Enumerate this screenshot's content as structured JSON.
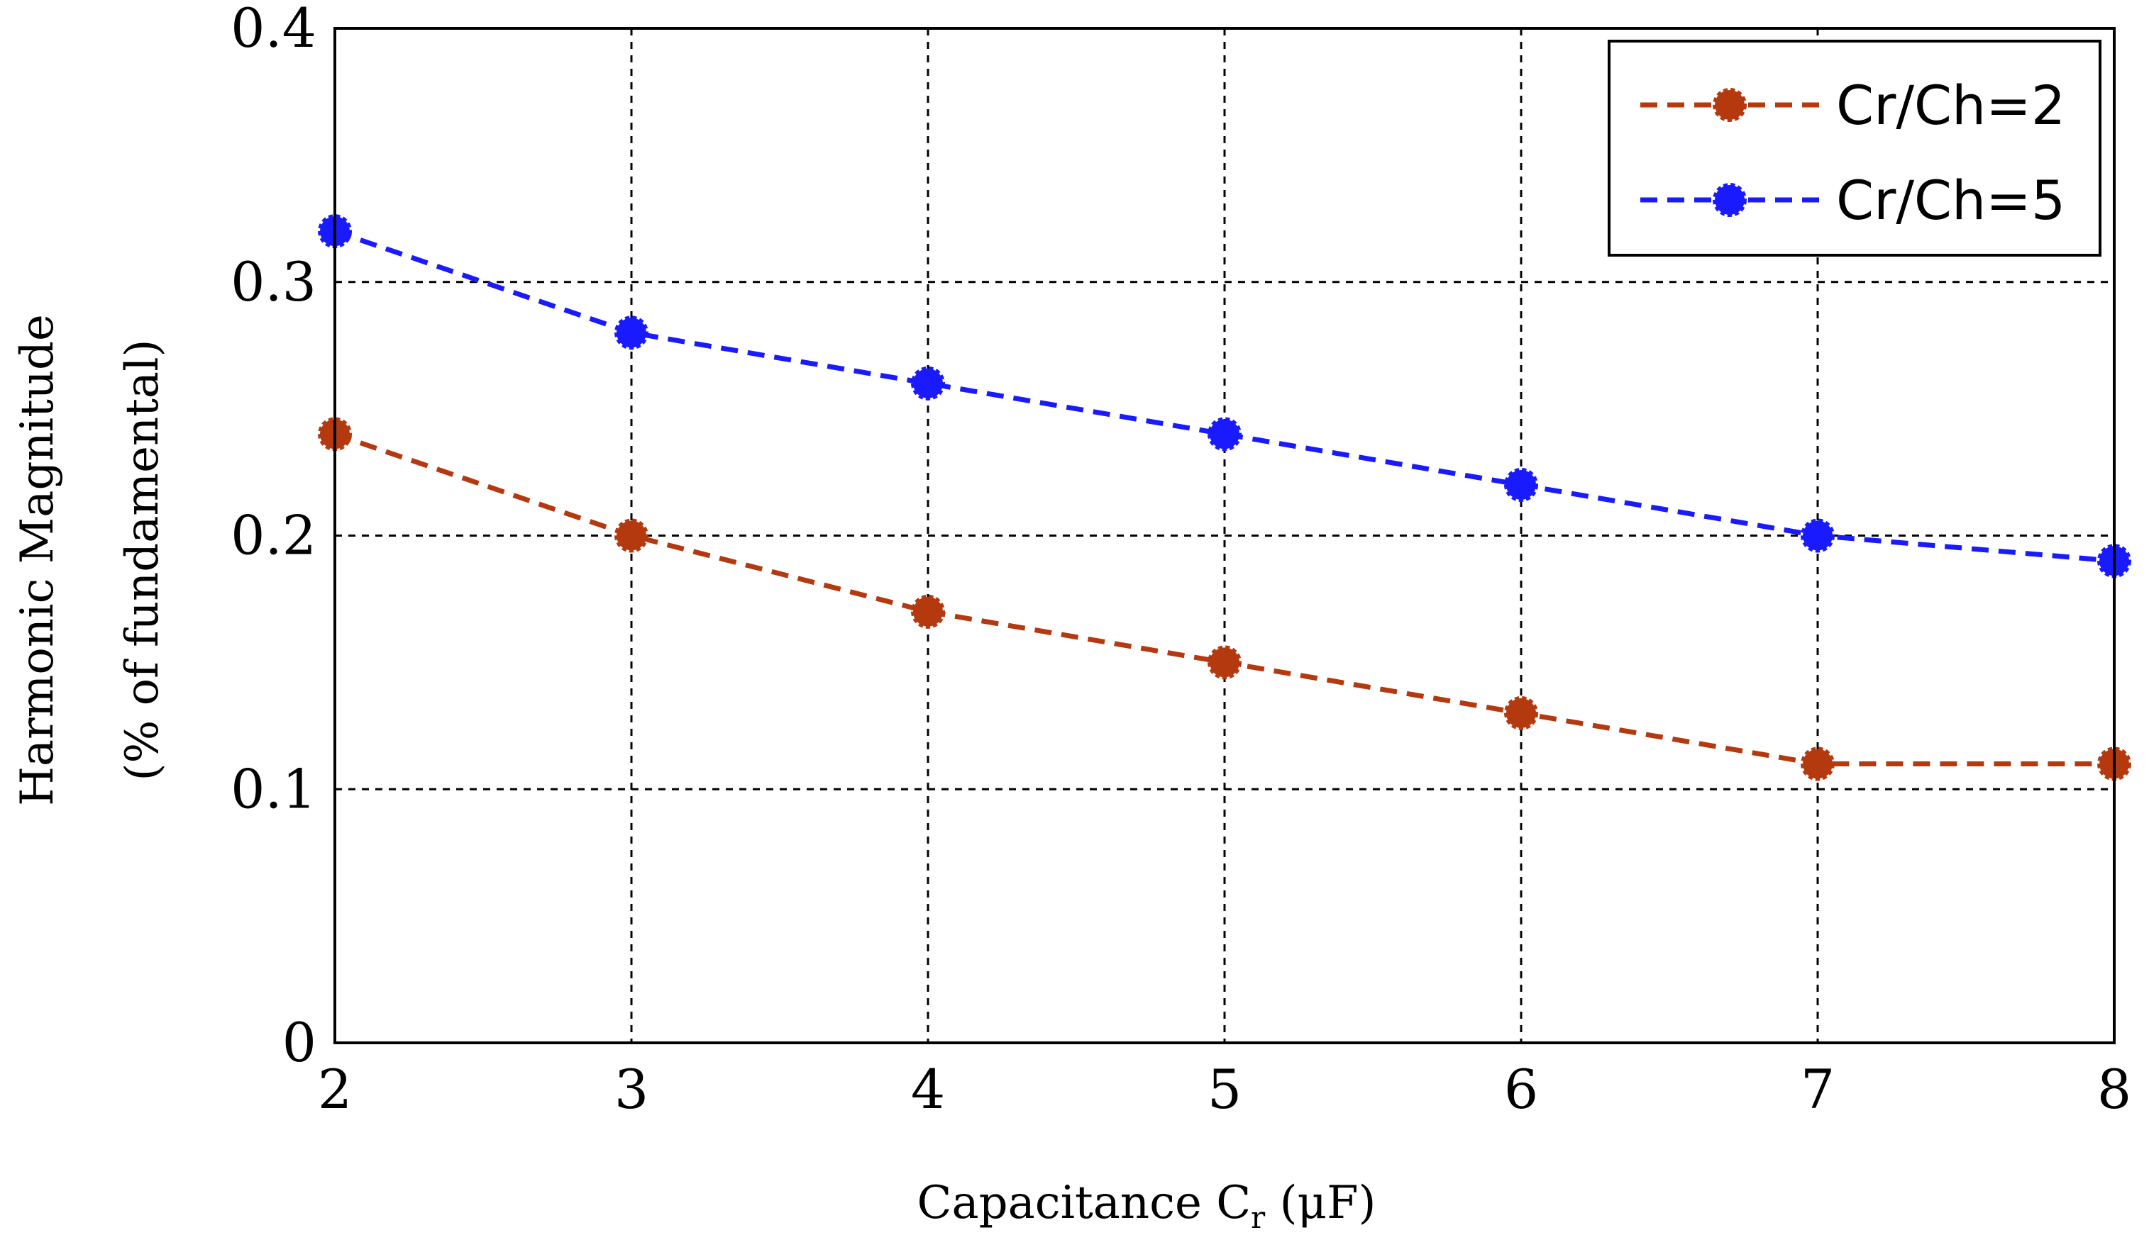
{
  "chart_data": {
    "type": "line",
    "title": "",
    "xlabel": {
      "main": "Capacitance C",
      "subscript": "r",
      "unit": " (μF)"
    },
    "ylabel": {
      "line1": "Harmonic Magnitude",
      "line2": "(% of fundamental)"
    },
    "x": [
      2,
      3,
      4,
      5,
      6,
      7,
      8
    ],
    "xlim": [
      2,
      8
    ],
    "ylim": [
      0,
      0.4
    ],
    "xticks": [
      "2",
      "3",
      "4",
      "5",
      "6",
      "7",
      "8"
    ],
    "yticks": [
      "0",
      "0.1",
      "0.2",
      "0.3",
      "0.4"
    ],
    "yticks_values": [
      0,
      0.1,
      0.2,
      0.3,
      0.4
    ],
    "grid": true,
    "legend_position": "top-right",
    "series": [
      {
        "name": "Cr/Ch=2",
        "color": "#b5390f",
        "values": [
          0.24,
          0.2,
          0.17,
          0.15,
          0.13,
          0.11,
          0.11
        ]
      },
      {
        "name": "Cr/Ch=5",
        "color": "#1a1aff",
        "values": [
          0.32,
          0.28,
          0.26,
          0.24,
          0.22,
          0.2,
          0.19
        ]
      }
    ]
  }
}
